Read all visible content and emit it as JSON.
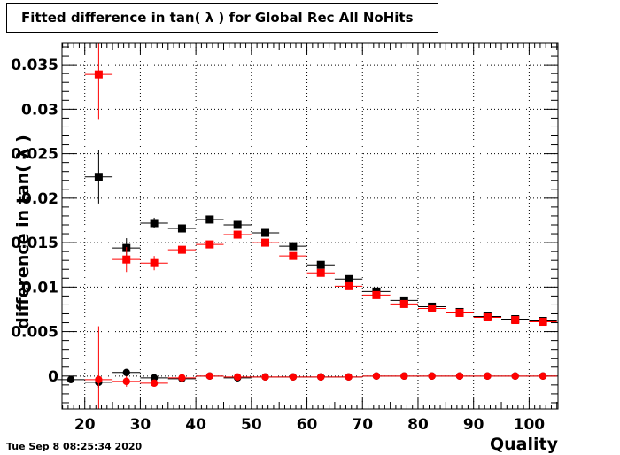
{
  "title": "Fitted difference in tan( λ ) for Global Rec All NoHits",
  "timestamp": "Tue Sep  8 08:25:34 2020",
  "chart_data": {
    "type": "scatter",
    "xlabel": "Quality",
    "ylabel": "difference in tan( λ )",
    "xlim": [
      15.9,
      105.2
    ],
    "ylim": [
      -0.0037,
      0.0374
    ],
    "xticks": [
      20,
      30,
      40,
      50,
      60,
      70,
      80,
      90,
      100
    ],
    "xtick_labels": [
      "20",
      "30",
      "40",
      "50",
      "60",
      "70",
      "80",
      "90",
      "100"
    ],
    "yticks": [
      0,
      0.005,
      0.01,
      0.015,
      0.02,
      0.025,
      0.03,
      0.035
    ],
    "ytick_labels": [
      "0",
      "0.005",
      "0.01",
      "0.015",
      "0.02",
      "0.025",
      "0.03",
      "0.035"
    ],
    "grid": true,
    "legend": "none",
    "series": [
      {
        "color": "#000000",
        "marker": "square",
        "x": [
          22.5,
          27.5,
          32.5,
          37.5,
          42.5,
          47.5,
          52.5,
          57.5,
          62.5,
          67.5,
          72.5,
          77.5,
          82.5,
          87.5,
          92.5,
          97.5,
          102.5
        ],
        "y": [
          0.0224,
          0.0144,
          0.0172,
          0.0166,
          0.0176,
          0.017,
          0.0161,
          0.0146,
          0.0125,
          0.0109,
          0.0095,
          0.0085,
          0.0078,
          0.0072,
          0.0067,
          0.0064,
          0.0062
        ],
        "err": [
          0.003,
          0.0011,
          0.0006,
          0.0004,
          0.0003,
          0.0003,
          0.0003,
          0.0003,
          0.0003,
          0.0003,
          0.0002,
          0.0002,
          0.0002,
          0.0002,
          0.0002,
          0.0002,
          0.0002
        ]
      },
      {
        "color": "#ff0000",
        "marker": "square",
        "x": [
          22.5,
          27.5,
          32.5,
          37.5,
          42.5,
          47.5,
          52.5,
          57.5,
          62.5,
          67.5,
          72.5,
          77.5,
          82.5,
          87.5,
          92.5,
          97.5,
          102.5
        ],
        "y": [
          0.0339,
          0.0131,
          0.0127,
          0.0142,
          0.0148,
          0.0159,
          0.015,
          0.0135,
          0.0116,
          0.0101,
          0.0091,
          0.0081,
          0.0076,
          0.0071,
          0.0066,
          0.0063,
          0.0061
        ],
        "err": [
          0.005,
          0.0014,
          0.0008,
          0.0004,
          0.0003,
          0.0003,
          0.0003,
          0.0003,
          0.0003,
          0.0003,
          0.0002,
          0.0002,
          0.0002,
          0.0002,
          0.0002,
          0.0002,
          0.0002
        ]
      },
      {
        "color": "#000000",
        "marker": "circle",
        "x": [
          17.5,
          22.5,
          27.5,
          32.5,
          37.5,
          42.5,
          47.5,
          52.5,
          57.5,
          62.5,
          67.5,
          72.5,
          77.5,
          82.5,
          87.5,
          92.5,
          97.5,
          102.5
        ],
        "y": [
          -0.0004,
          -0.0007,
          0.0004,
          -0.0002,
          -0.0003,
          0.0,
          -0.0002,
          -0.0001,
          -0.0001,
          -0.0001,
          -0.0001,
          0.0,
          0.0,
          0.0,
          0.0,
          0.0,
          0.0,
          0.0
        ],
        "err": [
          0.0003,
          0.0006,
          0.0004,
          0.0003,
          0.0002,
          0.0002,
          0.0002,
          0.0001,
          0.0001,
          0.0001,
          0.0001,
          0.0001,
          0.0001,
          0.0001,
          0.0001,
          0.0001,
          0.0001,
          0.0001
        ]
      },
      {
        "color": "#ff0000",
        "marker": "circle",
        "x": [
          22.5,
          27.5,
          32.5,
          37.5,
          42.5,
          47.5,
          52.5,
          57.5,
          62.5,
          67.5,
          72.5,
          77.5,
          82.5,
          87.5,
          92.5,
          97.5,
          102.5
        ],
        "y": [
          -0.0004,
          -0.0006,
          -0.0008,
          -0.0002,
          0.0,
          -0.0001,
          -0.0001,
          -0.0001,
          -0.0001,
          -0.0001,
          0.0,
          0.0,
          0.0,
          0.0,
          0.0,
          0.0,
          0.0
        ],
        "err": [
          0.006,
          0.0006,
          0.0003,
          0.0002,
          0.0002,
          0.0001,
          0.0001,
          0.0001,
          0.0001,
          0.0001,
          0.0001,
          0.0001,
          0.0001,
          0.0001,
          0.0001,
          0.0001,
          0.0001
        ]
      }
    ]
  }
}
